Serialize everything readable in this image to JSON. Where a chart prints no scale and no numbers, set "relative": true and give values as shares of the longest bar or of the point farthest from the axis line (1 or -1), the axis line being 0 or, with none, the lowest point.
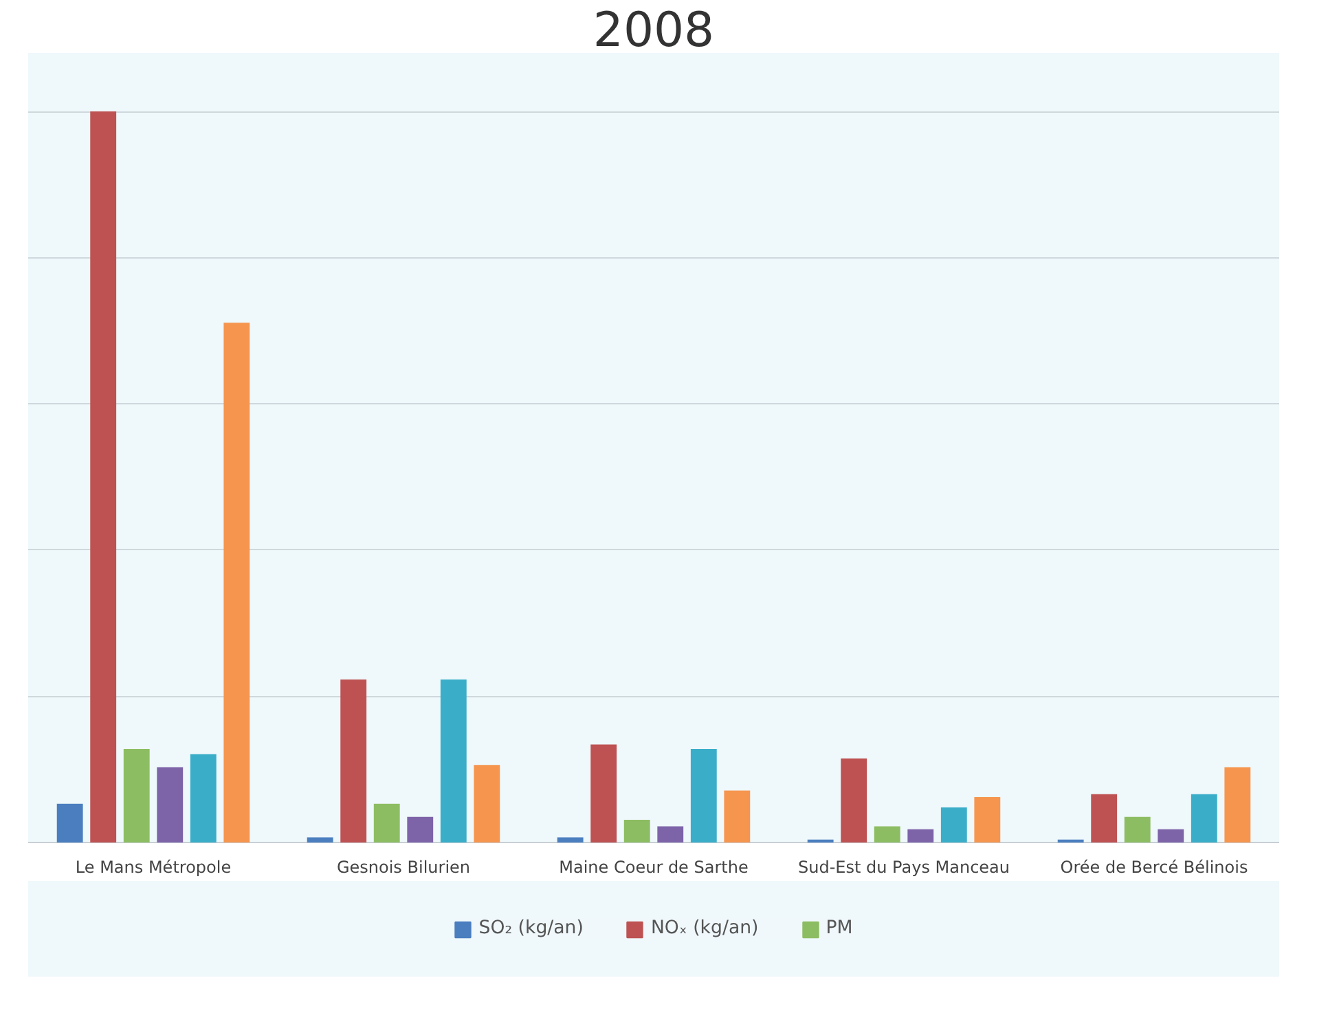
{
  "chart_data": {
    "type": "bar",
    "title": "2008",
    "relative": true,
    "grid": "y",
    "legend": "bottom",
    "tick_labels": "x",
    "categories": [
      "Le Mans Métropole",
      "Gesnois Bilurien",
      "Maine Coeur de Sarthe",
      "Sud-Est du Pays Manceau",
      "Orée de Bercé Bélinois"
    ],
    "series": [
      {
        "name": "SO₂ (kg/an)",
        "color": "#4a7ebf",
        "values": [
          0.053,
          0.007,
          0.007,
          0.004,
          0.004
        ]
      },
      {
        "name": "NOₓ (kg/an)",
        "color": "#be5252",
        "values": [
          1,
          0.223,
          0.134,
          0.115,
          0.066
        ]
      },
      {
        "name": "PM",
        "color": "#8dbd62",
        "values": [
          0.128,
          0.053,
          0.031,
          0.022,
          0.035
        ]
      },
      {
        "color": "#7d63a8",
        "values": [
          0.103,
          0.035,
          0.022,
          0.018,
          0.018
        ]
      },
      {
        "color": "#3aaec9",
        "values": [
          0.121,
          0.223,
          0.128,
          0.048,
          0.066
        ]
      },
      {
        "color": "#f6954e",
        "values": [
          0.711,
          0.106,
          0.071,
          0.062,
          0.103
        ]
      }
    ]
  }
}
